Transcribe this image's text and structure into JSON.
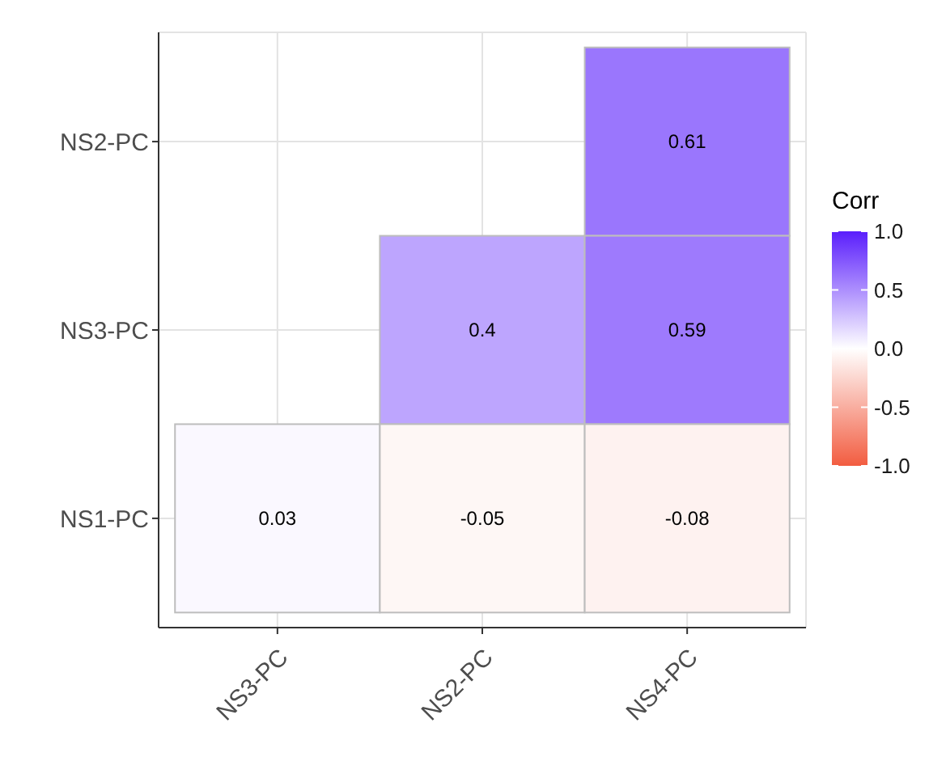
{
  "chart_data": {
    "type": "heatmap",
    "categories": [
      "NS3-PC",
      "NS2-PC",
      "NS4-PC"
    ],
    "y_categories": [
      "NS2-PC",
      "NS3-PC",
      "NS1-PC"
    ],
    "cells": [
      [
        null,
        null,
        0.61
      ],
      [
        null,
        0.4,
        0.59
      ],
      [
        0.03,
        -0.05,
        -0.08
      ]
    ],
    "clabel": "Corr",
    "clim": [
      -1,
      1
    ],
    "cticks": [
      {
        "value": -1,
        "label": "-1.0"
      },
      {
        "value": -0.5,
        "label": "-0.5"
      },
      {
        "value": 0,
        "label": "0.0"
      },
      {
        "value": 0.5,
        "label": "0.5"
      },
      {
        "value": 1,
        "label": "1.0"
      }
    ],
    "data_labels": true,
    "grid": true
  }
}
